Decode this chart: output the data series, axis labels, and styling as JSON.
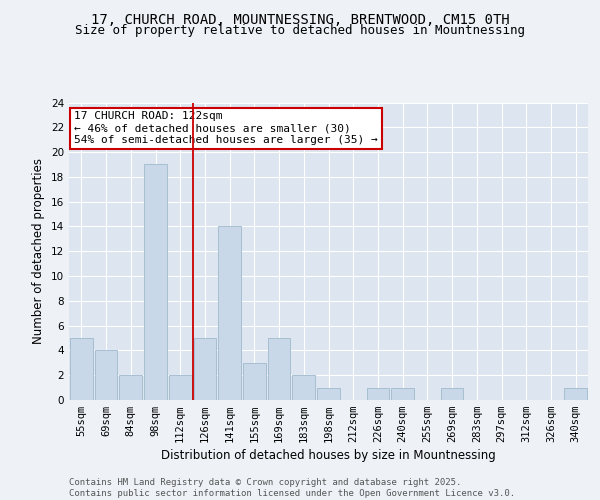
{
  "title1": "17, CHURCH ROAD, MOUNTNESSING, BRENTWOOD, CM15 0TH",
  "title2": "Size of property relative to detached houses in Mountnessing",
  "xlabel": "Distribution of detached houses by size in Mountnessing",
  "ylabel": "Number of detached properties",
  "categories": [
    "55sqm",
    "69sqm",
    "84sqm",
    "98sqm",
    "112sqm",
    "126sqm",
    "141sqm",
    "155sqm",
    "169sqm",
    "183sqm",
    "198sqm",
    "212sqm",
    "226sqm",
    "240sqm",
    "255sqm",
    "269sqm",
    "283sqm",
    "297sqm",
    "312sqm",
    "326sqm",
    "340sqm"
  ],
  "values": [
    5,
    4,
    2,
    19,
    2,
    5,
    14,
    3,
    5,
    2,
    1,
    0,
    1,
    1,
    0,
    1,
    0,
    0,
    0,
    0,
    1
  ],
  "bar_color": "#c8d8e8",
  "bar_edge_color": "#a0b8cc",
  "vline_x_index": 4.5,
  "vline_color": "#cc0000",
  "annotation_text": "17 CHURCH ROAD: 122sqm\n← 46% of detached houses are smaller (30)\n54% of semi-detached houses are larger (35) →",
  "annotation_box_color": "#ffffff",
  "annotation_box_edge_color": "#cc0000",
  "ylim": [
    0,
    24
  ],
  "yticks": [
    0,
    2,
    4,
    6,
    8,
    10,
    12,
    14,
    16,
    18,
    20,
    22,
    24
  ],
  "background_color": "#dde6f0",
  "fig_background_color": "#eef2f7",
  "footer_text": "Contains HM Land Registry data © Crown copyright and database right 2025.\nContains public sector information licensed under the Open Government Licence v3.0.",
  "title_fontsize": 10,
  "subtitle_fontsize": 9,
  "axis_label_fontsize": 8.5,
  "tick_fontsize": 7.5,
  "annotation_fontsize": 8,
  "footer_fontsize": 6.5
}
